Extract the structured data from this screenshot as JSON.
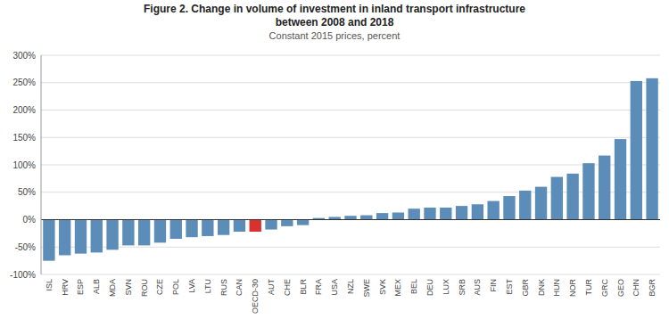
{
  "chart_data": {
    "type": "bar",
    "title": [
      "Figure 2. Change in volume of investment in inland transport infrastructure",
      "between 2008 and 2018"
    ],
    "subtitle": "Constant 2015 prices, percent",
    "categories": [
      "ISL",
      "HRV",
      "ESP",
      "ALB",
      "MDA",
      "SVN",
      "ROU",
      "CZE",
      "POL",
      "LVA",
      "LTU",
      "RUS",
      "CAN",
      "OECD-30",
      "AUT",
      "CHE",
      "BLR",
      "FRA",
      "USA",
      "NZL",
      "SWE",
      "SVK",
      "MEX",
      "BEL",
      "DEU",
      "LUX",
      "SRB",
      "AUS",
      "FIN",
      "EST",
      "GBR",
      "DNK",
      "HUN",
      "NOR",
      "TUR",
      "GRC",
      "GEO",
      "CHN",
      "BGR"
    ],
    "values": [
      -75,
      -65,
      -62,
      -60,
      -55,
      -47,
      -47,
      -42,
      -35,
      -32,
      -30,
      -28,
      -22,
      -22,
      -18,
      -12,
      -10,
      3,
      5,
      7,
      8,
      12,
      13,
      20,
      22,
      22,
      25,
      28,
      34,
      43,
      53,
      60,
      78,
      84,
      103,
      117,
      147,
      253,
      258
    ],
    "colors": [
      "#5b8db8",
      "#5b8db8",
      "#5b8db8",
      "#5b8db8",
      "#5b8db8",
      "#5b8db8",
      "#5b8db8",
      "#5b8db8",
      "#5b8db8",
      "#5b8db8",
      "#5b8db8",
      "#5b8db8",
      "#5b8db8",
      "#d93030",
      "#5b8db8",
      "#5b8db8",
      "#5b8db8",
      "#5b8db8",
      "#5b8db8",
      "#5b8db8",
      "#5b8db8",
      "#5b8db8",
      "#5b8db8",
      "#5b8db8",
      "#5b8db8",
      "#5b8db8",
      "#5b8db8",
      "#5b8db8",
      "#5b8db8",
      "#5b8db8",
      "#5b8db8",
      "#5b8db8",
      "#5b8db8",
      "#5b8db8",
      "#5b8db8",
      "#5b8db8",
      "#5b8db8",
      "#5b8db8",
      "#5b8db8"
    ],
    "ylim": [
      -100,
      300
    ],
    "yticks": [
      {
        "value": -100,
        "label": "-100%"
      },
      {
        "value": -50,
        "label": "-50%"
      },
      {
        "value": 0,
        "label": "0%"
      },
      {
        "value": 50,
        "label": "50%"
      },
      {
        "value": 100,
        "label": "100%"
      },
      {
        "value": 150,
        "label": "150%"
      },
      {
        "value": 200,
        "label": "200%"
      },
      {
        "value": 250,
        "label": "250%"
      },
      {
        "value": 300,
        "label": "300%"
      }
    ],
    "grid": true
  }
}
